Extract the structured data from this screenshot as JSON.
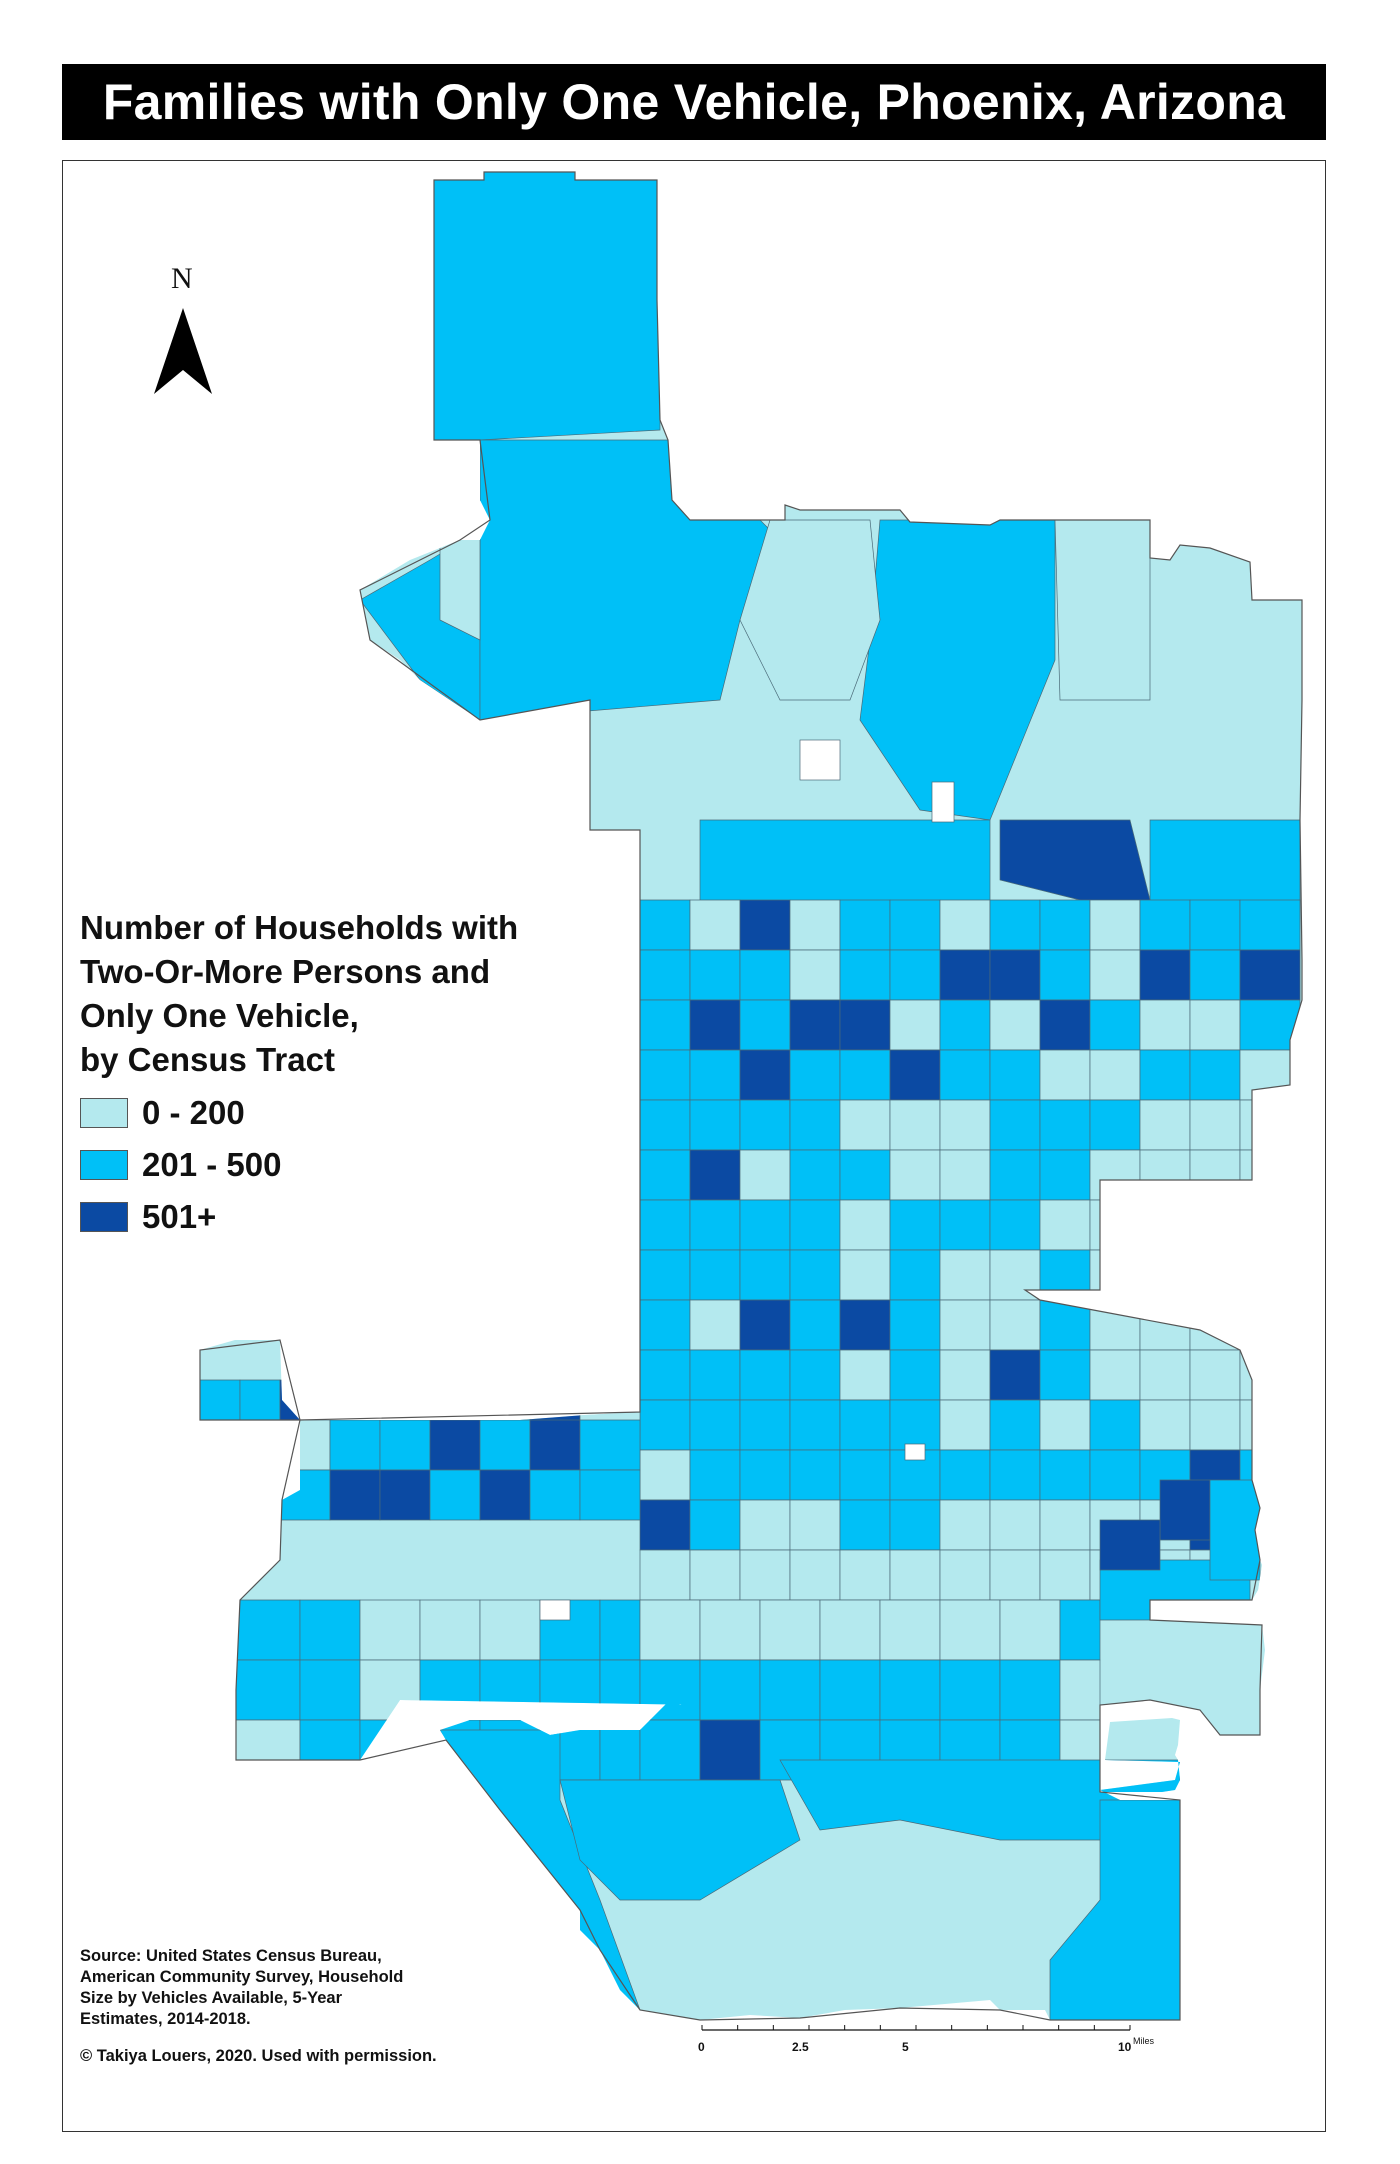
{
  "title": "Families with Only One Vehicle, Phoenix, Arizona",
  "legend": {
    "title_lines": [
      "Number of Households with",
      "Two-Or-More Persons and",
      "Only One Vehicle,",
      "by Census Tract"
    ],
    "items": [
      {
        "label": "0 - 200",
        "color": "#b4e9ee"
      },
      {
        "label": "201 - 500",
        "color": "#00c0f7"
      },
      {
        "label": "501+",
        "color": "#0b4aa3"
      }
    ]
  },
  "north_arrow": {
    "letter": "N"
  },
  "scale_bar": {
    "labels": [
      "0",
      "2.5",
      "5",
      "10"
    ],
    "unit": "Miles"
  },
  "source": {
    "lines": [
      "Source: United States Census Bureau,",
      "American Community Survey, Household",
      "Size by Vehicles Available, 5-Year",
      "Estimates, 2014-2018."
    ]
  },
  "copyright": "© Takiya Louers, 2020. Used with permission."
}
